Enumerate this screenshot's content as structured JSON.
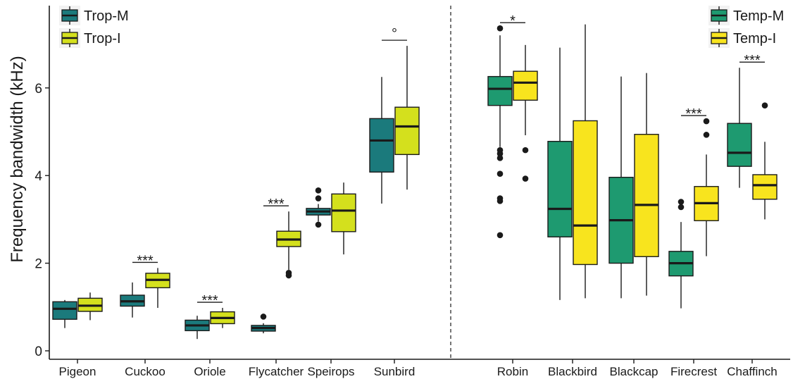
{
  "chart_data": {
    "type": "boxplot",
    "ylabel": "Frequency bandwidth (kHz)",
    "ylim": [
      -0.15,
      7.8
    ],
    "yticks": [
      0,
      2,
      4,
      6
    ],
    "grid": false,
    "divider": "dashed vertical line between Sunbird and Robin",
    "groups": [
      {
        "legend_placement": "top-left",
        "series": [
          {
            "name": "Trop-M",
            "color": "#1b7a7c"
          },
          {
            "name": "Trop-I",
            "color": "#d4e01d"
          }
        ],
        "categories": [
          {
            "name": "Pigeon",
            "boxes": [
              {
                "whisker_low": 0.52,
                "q1": 0.72,
                "median": 0.96,
                "q3": 1.12,
                "whisker_high": 1.16,
                "outliers": []
              },
              {
                "whisker_low": 0.7,
                "q1": 0.9,
                "median": 1.03,
                "q3": 1.2,
                "whisker_high": 1.33,
                "outliers": []
              }
            ],
            "sig": ""
          },
          {
            "name": "Cuckoo",
            "boxes": [
              {
                "whisker_low": 0.76,
                "q1": 1.02,
                "median": 1.13,
                "q3": 1.27,
                "whisker_high": 1.56,
                "outliers": []
              },
              {
                "whisker_low": 0.98,
                "q1": 1.44,
                "median": 1.62,
                "q3": 1.77,
                "whisker_high": 1.89,
                "outliers": []
              }
            ],
            "sig": "***"
          },
          {
            "name": "Oriole",
            "boxes": [
              {
                "whisker_low": 0.27,
                "q1": 0.46,
                "median": 0.58,
                "q3": 0.7,
                "whisker_high": 0.8,
                "outliers": []
              },
              {
                "whisker_low": 0.52,
                "q1": 0.62,
                "median": 0.75,
                "q3": 0.89,
                "whisker_high": 0.98,
                "outliers": []
              }
            ],
            "sig": "***"
          },
          {
            "name": "Flycatcher",
            "boxes": [
              {
                "whisker_low": 0.4,
                "q1": 0.45,
                "median": 0.52,
                "q3": 0.58,
                "whisker_high": 0.63,
                "outliers": [
                  0.78
                ]
              },
              {
                "whisker_low": 1.85,
                "q1": 2.38,
                "median": 2.54,
                "q3": 2.73,
                "whisker_high": 3.18,
                "outliers": [
                  1.72,
                  1.78
                ]
              }
            ],
            "sig": "***"
          },
          {
            "name": "Speirops",
            "boxes": [
              {
                "whisker_low": 2.95,
                "q1": 3.1,
                "median": 3.18,
                "q3": 3.25,
                "whisker_high": 3.35,
                "outliers": [
                  2.88,
                  3.48,
                  3.66
                ]
              },
              {
                "whisker_low": 2.2,
                "q1": 2.72,
                "median": 3.2,
                "q3": 3.58,
                "whisker_high": 3.84,
                "outliers": []
              }
            ],
            "sig": ""
          },
          {
            "name": "Sunbird",
            "boxes": [
              {
                "whisker_low": 3.36,
                "q1": 4.08,
                "median": 4.8,
                "q3": 5.3,
                "whisker_high": 6.25,
                "outliers": []
              },
              {
                "whisker_low": 3.68,
                "q1": 4.48,
                "median": 5.12,
                "q3": 5.56,
                "whisker_high": 6.96,
                "outliers": []
              }
            ],
            "sig": "°"
          }
        ]
      },
      {
        "legend_placement": "top-right",
        "series": [
          {
            "name": "Temp-M",
            "color": "#1e9a70"
          },
          {
            "name": "Temp-I",
            "color": "#f8e41e"
          }
        ],
        "categories": [
          {
            "name": "Robin",
            "boxes": [
              {
                "whisker_low": 4.65,
                "q1": 5.6,
                "median": 5.98,
                "q3": 6.26,
                "whisker_high": 7.2,
                "outliers": [
                  2.64,
                  3.42,
                  3.48,
                  4.04,
                  4.4,
                  4.5,
                  4.58,
                  7.36
                ]
              },
              {
                "whisker_low": 4.92,
                "q1": 5.72,
                "median": 6.12,
                "q3": 6.38,
                "whisker_high": 6.98,
                "outliers": [
                  3.93,
                  4.58
                ]
              }
            ],
            "sig": "*"
          },
          {
            "name": "Blackbird",
            "boxes": [
              {
                "whisker_low": 1.16,
                "q1": 2.6,
                "median": 3.24,
                "q3": 4.78,
                "whisker_high": 6.92,
                "outliers": []
              },
              {
                "whisker_low": 1.2,
                "q1": 1.97,
                "median": 2.86,
                "q3": 5.25,
                "whisker_high": 7.45,
                "outliers": []
              }
            ],
            "sig": ""
          },
          {
            "name": "Blackcap",
            "boxes": [
              {
                "whisker_low": 1.2,
                "q1": 2.0,
                "median": 2.98,
                "q3": 3.96,
                "whisker_high": 6.26,
                "outliers": []
              },
              {
                "whisker_low": 1.26,
                "q1": 2.15,
                "median": 3.33,
                "q3": 4.94,
                "whisker_high": 6.34,
                "outliers": []
              }
            ],
            "sig": ""
          },
          {
            "name": "Firecrest",
            "boxes": [
              {
                "whisker_low": 0.97,
                "q1": 1.71,
                "median": 2.0,
                "q3": 2.27,
                "whisker_high": 2.94,
                "outliers": [
                  3.28,
                  3.4
                ]
              },
              {
                "whisker_low": 2.16,
                "q1": 2.97,
                "median": 3.37,
                "q3": 3.75,
                "whisker_high": 4.48,
                "outliers": [
                  4.93,
                  5.24
                ]
              }
            ],
            "sig": "***"
          },
          {
            "name": "Chaffinch",
            "boxes": [
              {
                "whisker_low": 3.72,
                "q1": 4.21,
                "median": 4.52,
                "q3": 5.19,
                "whisker_high": 6.46,
                "outliers": []
              },
              {
                "whisker_low": 3.0,
                "q1": 3.46,
                "median": 3.78,
                "q3": 4.02,
                "whisker_high": 4.77,
                "outliers": [
                  5.6
                ]
              }
            ],
            "sig": "***"
          }
        ]
      }
    ]
  }
}
